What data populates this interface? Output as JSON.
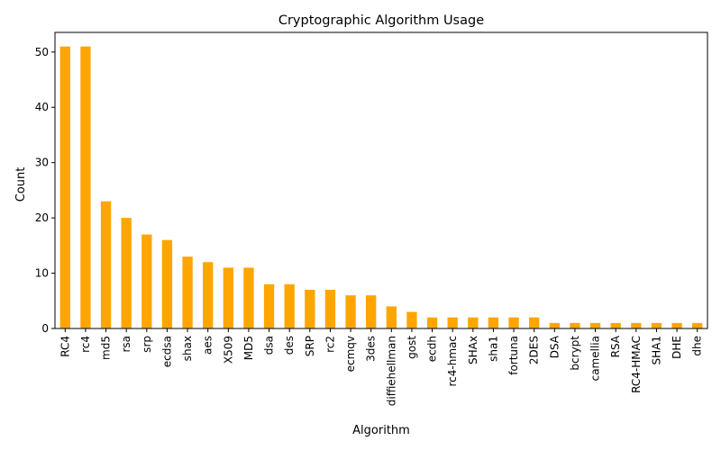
{
  "chart_data": {
    "type": "bar",
    "title": "Cryptographic Algorithm Usage",
    "xlabel": "Algorithm",
    "ylabel": "Count",
    "ylim": [
      0,
      53.55
    ],
    "yticks": [
      0,
      10,
      20,
      30,
      40,
      50
    ],
    "bar_color": "#ffa500",
    "grid": false,
    "categories": [
      "RC4",
      "rc4",
      "md5",
      "rsa",
      "srp",
      "ecdsa",
      "shax",
      "aes",
      "X509",
      "MD5",
      "dsa",
      "des",
      "SRP",
      "rc2",
      "ecmqv",
      "3des",
      "diffiehellman",
      "gost",
      "ecdh",
      "rc4-hmac",
      "SHAx",
      "sha1",
      "fortuna",
      "2DES",
      "DSA",
      "bcrypt",
      "camellia",
      "RSA",
      "RC4-HMAC",
      "SHA1",
      "DHE",
      "dhe"
    ],
    "values": [
      51,
      51,
      23,
      20,
      17,
      16,
      13,
      12,
      11,
      11,
      8,
      8,
      7,
      7,
      6,
      6,
      4,
      3,
      2,
      2,
      2,
      2,
      2,
      2,
      1,
      1,
      1,
      1,
      1,
      1,
      1,
      1
    ]
  }
}
